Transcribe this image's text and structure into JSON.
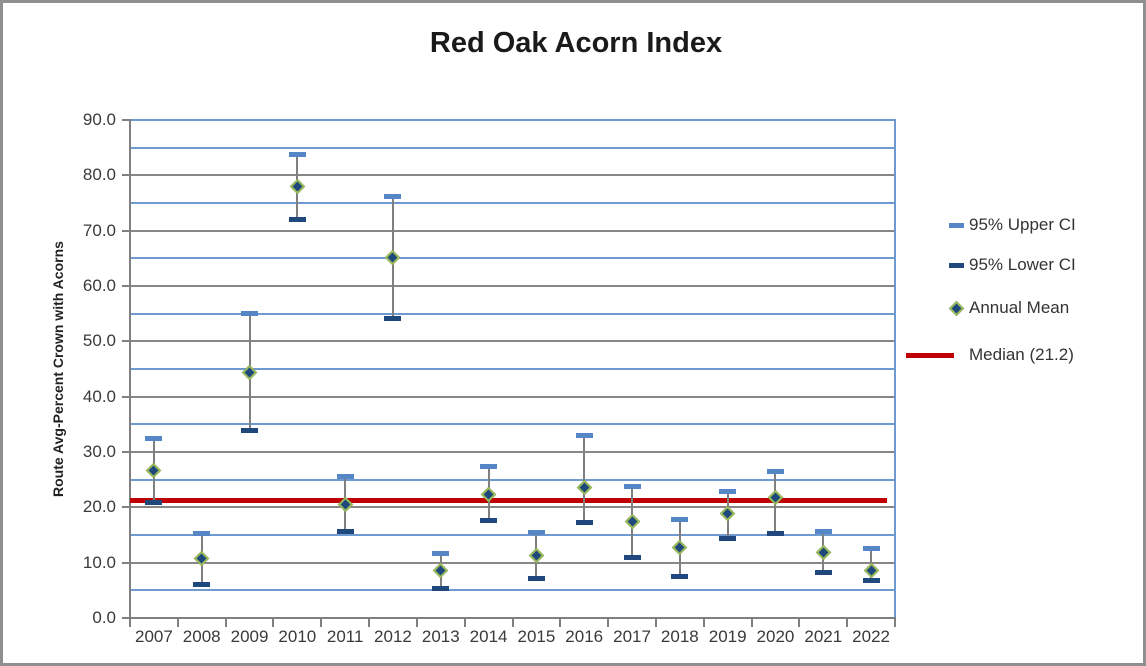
{
  "chart_data": {
    "type": "scatter",
    "title": "Red Oak Acorn Index",
    "xlabel": "",
    "ylabel": "Route Avg-Percent Crown with Acorns",
    "ylim": [
      0,
      90
    ],
    "y_major_step": 10,
    "y_minor_step": 5,
    "y_tick_decimals": 1,
    "grid": "on",
    "legend_position": "right",
    "categories": [
      "2007",
      "2008",
      "2009",
      "2010",
      "2011",
      "2012",
      "2013",
      "2014",
      "2015",
      "2016",
      "2017",
      "2018",
      "2019",
      "2020",
      "2021",
      "2022"
    ],
    "series": [
      {
        "name": "95% Upper CI",
        "marker": "dash",
        "color": "#5586c6",
        "values": [
          32.5,
          15.3,
          55.0,
          83.8,
          25.5,
          76.2,
          11.7,
          27.4,
          15.5,
          32.9,
          23.7,
          17.8,
          22.8,
          26.4,
          15.7,
          12.6
        ]
      },
      {
        "name": "95% Lower CI",
        "marker": "dash",
        "color": "#1f497d",
        "values": [
          20.9,
          6.0,
          33.9,
          72.0,
          15.6,
          54.2,
          5.3,
          17.7,
          7.2,
          17.2,
          11.0,
          7.5,
          14.3,
          15.2,
          8.3,
          6.8
        ]
      },
      {
        "name": "Annual Mean",
        "marker": "diamond",
        "fill": "#1f497d",
        "edge": "#9bbb59",
        "values": [
          26.7,
          10.8,
          44.4,
          78.0,
          20.5,
          65.1,
          8.5,
          22.4,
          11.3,
          23.5,
          17.5,
          12.8,
          18.8,
          21.8,
          11.8,
          8.6
        ]
      },
      {
        "name": "Median (21.2)",
        "marker": "line",
        "color": "#c00000",
        "value": 21.2
      }
    ],
    "colors": {
      "minor_gridline": "#6f9ad0",
      "major_gridline": "#878787",
      "axis": "#7f7f7f",
      "error_bar_line": "#7f7f7f",
      "median": "#c00000",
      "mean_fill": "#1f497d",
      "mean_edge": "#9bbb59",
      "upper_ci": "#5586c6",
      "lower_ci": "#1f497d"
    }
  }
}
